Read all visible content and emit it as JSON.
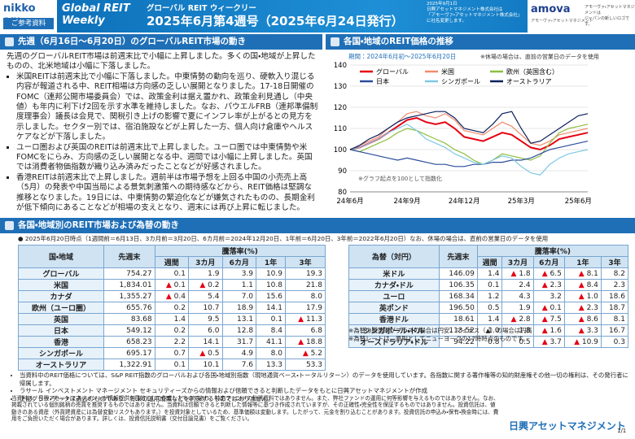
{
  "header": {
    "logo": "nikko am",
    "logo_sub": "ご参考資料",
    "brand_line1": "Global REIT",
    "brand_line2": "Weekly",
    "series_title": "グローバル REIT ウィークリー",
    "issue": "2025年6月第4週号（2025年6月24日発行）",
    "notice": [
      "2025年9月1日",
      "日興アセットマネジメント株式会社は",
      "「アモーヴァ・アセットマネジメント株式会社」",
      "に社名変更します。"
    ],
    "amova": "amova",
    "amova_sub": "アモーヴァ・アセットマネジメント",
    "amova_note": [
      "アモーヴァ・アセットマネジメントは",
      "ジャパンの新しいロゴです。"
    ]
  },
  "market": {
    "title": "先週（6月16日～6月20日）のグローバルREIT市場の動き",
    "intro": "先週のグローバルREIT市場は前週末比で小幅に上昇しました。多くの国・地域が上昇したものの、北米地域は小幅に下落しました。",
    "bullets": [
      "米国REITは前週末比で小幅に下落しました。中東情勢の動向を巡り、硬軟入り混じる内容が報道される中、REIT相場は方向感の乏しい展開となりました。17-18日開催のFOMC（連邦公開市場委員会）では、政策金利は据え置かれ、政策金利見通し（中央値）も年内に利下げ2回を示す水準を維持しました。なお、パウエルFRB（連邦準備制度理事会）議長は会見で、関税引き上げの影響で夏にインフレ率が上がるとの見方を示しました。セクター別では、宿泊施設などが上昇した一方、個人向け倉庫やヘルスケアなどが下落しました。",
      "ユーロ圏および英国のREITは前週末比で上昇しました。ユーロ圏では中東情勢や米FOMCをにらみ、方向感の乏しい展開となる中、週間では小幅に上昇しました。英国では消費者物価指数が織り込み済みだったことなどが好感されました。",
      "香港REITは前週末比で上昇しました。週前半は市場予想を上回る中国の小売売上高（5月）の発表や中国当局による景気刺激策への期待感などから、REIT価格は堅調な推移となりました。19日には、中東情勢の緊迫化などが嫌気されたものの、長期金利が低下傾向にあることなどが相場の支えとなり、週末には再び上昇に転じました。"
    ]
  },
  "chart_data": {
    "type": "line",
    "title": "各国・地域のREIT価格の推移",
    "period": "期間：2024年6月初～2025年6月20日",
    "note": "※休場の場合は、直前の営業日のデータを使用",
    "index_note": "※グラフ起点を100として指数化",
    "categories": [
      "24年6月",
      null,
      null,
      null,
      null,
      null,
      "24年9月",
      null,
      null,
      null,
      null,
      null,
      "24年12月",
      null,
      null,
      null,
      null,
      null,
      "25年3月",
      null,
      null,
      null,
      null,
      null,
      "25年6月",
      null
    ],
    "ylim": [
      80,
      140
    ],
    "yticks": [
      80,
      90,
      100,
      110,
      120,
      130,
      140
    ],
    "grid": true,
    "series": [
      {
        "name": "グローバル",
        "color": "#e60012",
        "values": [
          100,
          101,
          103,
          105,
          108,
          111,
          114,
          115,
          113,
          112,
          113,
          110,
          106,
          105,
          104,
          106,
          108,
          107,
          104,
          101,
          100,
          102,
          105,
          106,
          107,
          108
        ]
      },
      {
        "name": "米国",
        "color": "#f08a6c",
        "values": [
          100,
          102,
          104,
          106,
          110,
          113,
          117,
          118,
          116,
          115,
          117,
          114,
          109,
          108,
          107,
          110,
          113,
          111,
          107,
          103,
          102,
          104,
          107,
          108,
          109,
          110
        ]
      },
      {
        "name": "欧州（英国含む）",
        "color": "#8cbf3f",
        "values": [
          100,
          99,
          101,
          103,
          105,
          108,
          110,
          109,
          107,
          105,
          103,
          100,
          98,
          95,
          93,
          95,
          98,
          97,
          96,
          95,
          97,
          103,
          108,
          110,
          111,
          112
        ]
      },
      {
        "name": "日本",
        "color": "#2b4c9b",
        "values": [
          100,
          99,
          98,
          97,
          96,
          95,
          96,
          95,
          94,
          93,
          93,
          92,
          92,
          93,
          93,
          94,
          94,
          95,
          95,
          96,
          98,
          100,
          101,
          102,
          103,
          104
        ]
      },
      {
        "name": "シンガポール",
        "color": "#7ec8e3",
        "values": [
          100,
          101,
          103,
          105,
          108,
          110,
          112,
          109,
          105,
          103,
          101,
          98,
          96,
          94,
          93,
          95,
          97,
          96,
          92,
          89,
          88,
          93,
          96,
          98,
          99,
          100
        ]
      },
      {
        "name": "オーストラリア",
        "color": "#0b1f5c",
        "values": [
          100,
          102,
          105,
          107,
          110,
          113,
          115,
          116,
          117,
          118,
          118,
          115,
          110,
          109,
          108,
          112,
          117,
          118,
          110,
          103,
          104,
          107,
          110,
          113,
          116,
          117
        ]
      }
    ]
  },
  "tables": {
    "title": "各国・地域別のREIT市場および為替の動き",
    "note": "2025年6月20日時点（1週間前＝6月13日、3カ月前＝3月20日、6カ月前＝2024年12月20日、1年前＝6月20日、3年前＝2022年6月20日）なお、休場の場合は、直前の営業日のデータを使用",
    "left": {
      "headers": [
        "国・地域",
        "先週末",
        "騰落率(%)"
      ],
      "periods": [
        "週間",
        "3カ月",
        "6カ月",
        "1年",
        "3年"
      ],
      "rows": [
        [
          "グローバル",
          "754.27",
          "0.1",
          "1.9",
          "3.9",
          "10.9",
          "19.3"
        ],
        [
          "米国",
          "1,834.01",
          "▲ 0.1",
          "▲ 0.2",
          "1.1",
          "10.8",
          "21.8"
        ],
        [
          "カナダ",
          "1,355.27",
          "▲ 0.4",
          "5.4",
          "7.0",
          "15.6",
          "8.0"
        ],
        [
          "欧州（ユーロ圏）",
          "655.76",
          "0.2",
          "10.7",
          "18.9",
          "14.1",
          "17.9"
        ],
        [
          "英国",
          "83.68",
          "1.4",
          "9.5",
          "13.1",
          "0.1",
          "▲ 11.3"
        ],
        [
          "日本",
          "549.12",
          "0.2",
          "6.0",
          "12.8",
          "8.4",
          "6.8"
        ],
        [
          "香港",
          "658.23",
          "2.2",
          "14.1",
          "31.7",
          "41.1",
          "▲ 18.8"
        ],
        [
          "シンガポール",
          "695.17",
          "0.7",
          "▲ 0.5",
          "4.9",
          "8.0",
          "▲ 5.2"
        ],
        [
          "オーストラリア",
          "1,322.91",
          "0.1",
          "10.1",
          "7.6",
          "13.3",
          "53.3"
        ]
      ]
    },
    "right": {
      "headers": [
        "為替（対円）",
        "先週末",
        "騰落率(%)"
      ],
      "periods": [
        "週間",
        "3カ月",
        "6カ月",
        "1年",
        "3年"
      ],
      "rows": [
        [
          "米ドル",
          "146.09",
          "1.4",
          "▲ 1.8",
          "▲ 6.5",
          "▲ 8.1",
          "8.2"
        ],
        [
          "カナダ・ドル",
          "106.35",
          "0.1",
          "2.4",
          "▲ 2.3",
          "▲ 8.4",
          "2.3"
        ],
        [
          "ユーロ",
          "168.34",
          "1.2",
          "4.3",
          "3.2",
          "▲ 1.0",
          "18.6"
        ],
        [
          "英ポンド",
          "196.50",
          "0.5",
          "1.9",
          "▲ 0.1",
          "▲ 2.3",
          "18.7"
        ],
        [
          "香港ドル",
          "18.61",
          "1.4",
          "▲ 2.8",
          "▲ 7.5",
          "▲ 8.6",
          "8.1"
        ],
        [
          "シンガポール・ドル",
          "113.52",
          "1.0",
          "1.8",
          "▲ 1.6",
          "▲ 3.3",
          "16.7"
        ],
        [
          "オーストラリア・ドル",
          "94.22",
          "0.8",
          "0.5",
          "▲ 3.7",
          "▲ 10.9",
          "0.3"
        ]
      ],
      "notes": [
        "※為替の騰落率がプラスの場合は円安、マイナス（▲）の場合は円高",
        "※為替レートは、原則としてニューヨークの17時時点のものです。"
      ]
    }
  },
  "footer": {
    "bullets": [
      "当資料中のREIT価格については、S&P REIT指数のグローバルおよび各国・地域別指数（現地通貨ベース・トータルリターン）のデータを使用しています。各指数に関する著作権等の知的財産権その他一切の権利は、その発行者に帰属します。",
      "ラサール インベストメント マネージメント セキュリティーズからの情報および信頼できると判断したデータをもとに日興アセットマネジメントが作成",
      "上記グラフ・データは過去のものであり、将来の運用成果などを約束するものではありません。"
    ],
    "disclaimer": "当資料は、日興アセットマネジメントが情報提供を目的として作成したものであり、特定ファンドの勧誘資料ではありません。また、弊社ファンドの運用に何等影響を与えるものではありません。なお、掲載されている個別銘柄の売買を推奨するものではありません。当資料は信頼できると判断した情報等に基づき作成されていますが、その正確性・完全性を保証するものではありません。投資信託は、値動きのある資産（外貨建資産には為替変動リスクもあります。）を投資対象としているため、基準価額は変動します。したがって、元金を割り込むことがあります。投資信託の申込み・保有・換金時には、費用をご負担いただく場合があります。詳しくは、投資信託説明書（交付目論見書）をご覧ください。",
    "company": "日興アセットマネジメント",
    "page": "1/1"
  }
}
